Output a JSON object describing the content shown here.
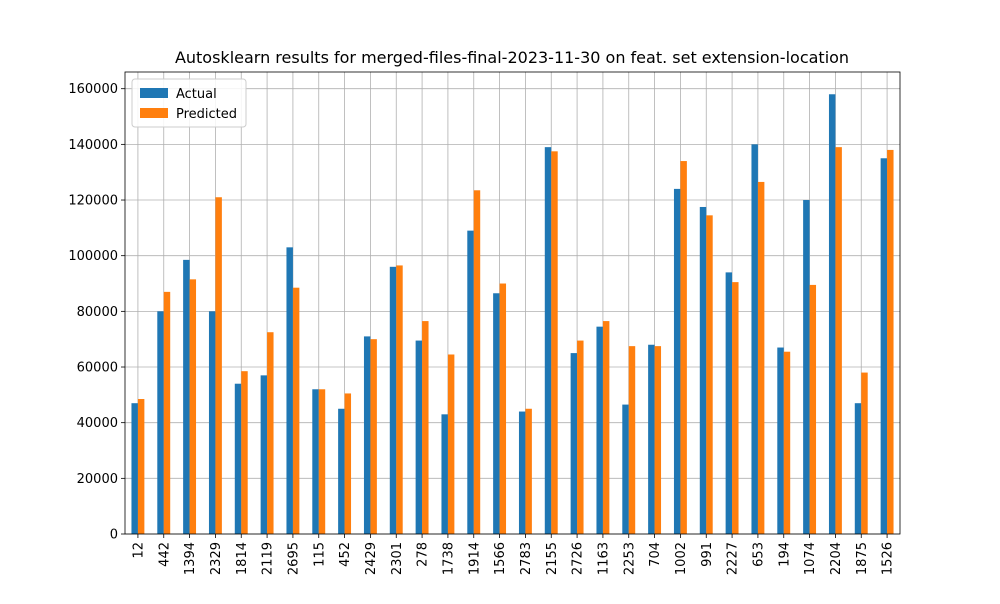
{
  "chart_data": {
    "type": "bar",
    "title": "Autosklearn results for merged-files-final-2023-11-30 on feat. set extension-location",
    "xlabel": "",
    "ylabel": "",
    "ylim": [
      0,
      166000
    ],
    "yticks": [
      0,
      20000,
      40000,
      60000,
      80000,
      100000,
      120000,
      140000,
      160000
    ],
    "ytick_labels": [
      "0",
      "20000",
      "40000",
      "60000",
      "80000",
      "100000",
      "120000",
      "140000",
      "160000"
    ],
    "grid": true,
    "legend_position": "top-left",
    "categories": [
      "12",
      "442",
      "1394",
      "2329",
      "1814",
      "2119",
      "2695",
      "115",
      "452",
      "2429",
      "2301",
      "278",
      "1738",
      "1914",
      "1566",
      "2783",
      "2155",
      "2726",
      "1163",
      "2253",
      "704",
      "1002",
      "991",
      "2227",
      "653",
      "194",
      "1074",
      "2204",
      "1875",
      "1526"
    ],
    "series": [
      {
        "name": "Actual",
        "color": "#1f77b4",
        "values": [
          47000,
          80000,
          98500,
          80000,
          54000,
          57000,
          103000,
          52000,
          45000,
          71000,
          96000,
          69500,
          43000,
          109000,
          86500,
          44000,
          139000,
          65000,
          74500,
          46500,
          68000,
          124000,
          117500,
          94000,
          140000,
          67000,
          120000,
          158000,
          47000,
          135000
        ]
      },
      {
        "name": "Predicted",
        "color": "#ff7f0e",
        "values": [
          48500,
          87000,
          91500,
          121000,
          58500,
          72500,
          88500,
          52000,
          50500,
          70000,
          96500,
          76500,
          64500,
          123500,
          90000,
          45000,
          137500,
          69500,
          76500,
          67500,
          67500,
          134000,
          114500,
          90500,
          126500,
          65500,
          89500,
          139000,
          58000,
          138000
        ]
      }
    ]
  }
}
